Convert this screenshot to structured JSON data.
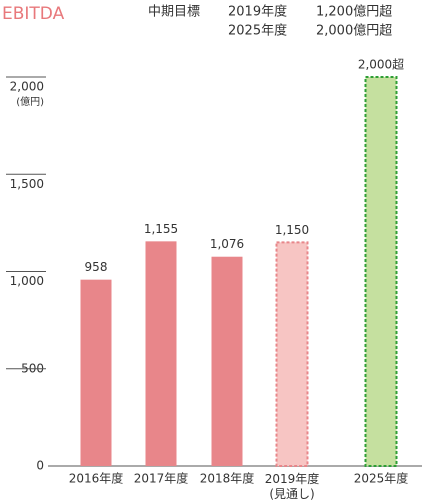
{
  "chart_data": {
    "type": "bar",
    "title": "EBITDA",
    "target": {
      "label": "中期目標",
      "rows": [
        [
          "2019年度",
          "1,200億円超"
        ],
        [
          "2025年度",
          "2,000億円超"
        ]
      ]
    },
    "y_unit": "(億円)",
    "categories": [
      "2016年度",
      "2017年度",
      "2018年度",
      "2019年度\n(見通し)",
      "2025年度"
    ],
    "values": [
      958,
      1155,
      1076,
      1150,
      2000
    ],
    "value_labels": [
      "958",
      "1,155",
      "1,076",
      "1,150",
      "2,000超"
    ],
    "colors": [
      "#e8868a",
      "#e8868a",
      "#e8868a",
      "#f7c5c3",
      "#c5e09f"
    ],
    "border_colors": [
      null,
      null,
      null,
      "#e8868a",
      "#2e9e35"
    ],
    "ylim": [
      0,
      2000
    ],
    "yticks": [
      0,
      500,
      {
        "value": 1000,
        "label": "1,000"
      },
      {
        "value": 1500,
        "label": "1,500"
      },
      {
        "value": 2000,
        "label": "2,000"
      }
    ]
  }
}
